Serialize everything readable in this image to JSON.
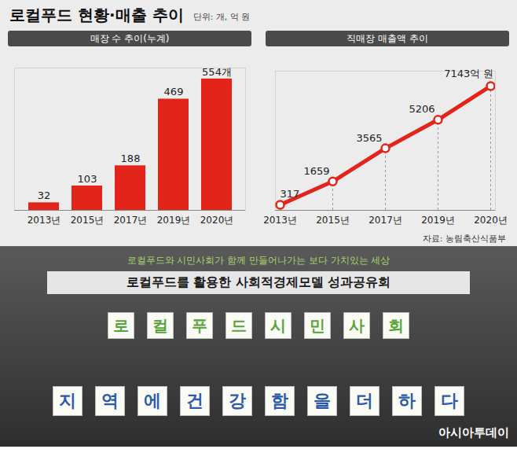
{
  "title": "로컬푸드 현황·매출 추이",
  "unit_note": "단위: 개, 억 원",
  "chart_data": [
    {
      "type": "bar",
      "title": "매장 수 추이(누계)",
      "categories": [
        "2013년",
        "2015년",
        "2017년",
        "2019년",
        "2020년"
      ],
      "values": [
        32,
        103,
        188,
        469,
        554
      ],
      "value_labels": [
        "32",
        "103",
        "188",
        "469",
        "554개"
      ],
      "color": "#e3241b",
      "ylim": [
        0,
        600
      ],
      "tick_labels": "x",
      "data_labels": true,
      "grid": false
    },
    {
      "type": "line",
      "title": "직매장 매출액 추이",
      "categories": [
        "2013년",
        "2015년",
        "2017년",
        "2019년",
        "2020년"
      ],
      "values": [
        317,
        1659,
        3565,
        5206,
        7143
      ],
      "value_labels": [
        "317",
        "1659",
        "3565",
        "5206",
        "7143억 원"
      ],
      "color": "#e3241b",
      "marker": "circle",
      "ylim": [
        0,
        8000
      ],
      "tick_labels": "x",
      "data_labels": true,
      "grid": false
    }
  ],
  "source": "자료: 농림축산식품부",
  "photo": {
    "banner_top": "로컬푸드와 시민사회가 함께 만들어나가는 보다 가치있는 세상",
    "banner_main": "로컬푸드를 활용한 사회적경제모델 성과공유회",
    "cards_top": [
      "로",
      "컬",
      "푸",
      "드",
      "시",
      "민",
      "사",
      "회"
    ],
    "cards_bottom": [
      "지",
      "역",
      "에",
      "건",
      "강",
      "함",
      "을",
      "더",
      "하",
      "다"
    ],
    "credit": "아시아투데이"
  }
}
